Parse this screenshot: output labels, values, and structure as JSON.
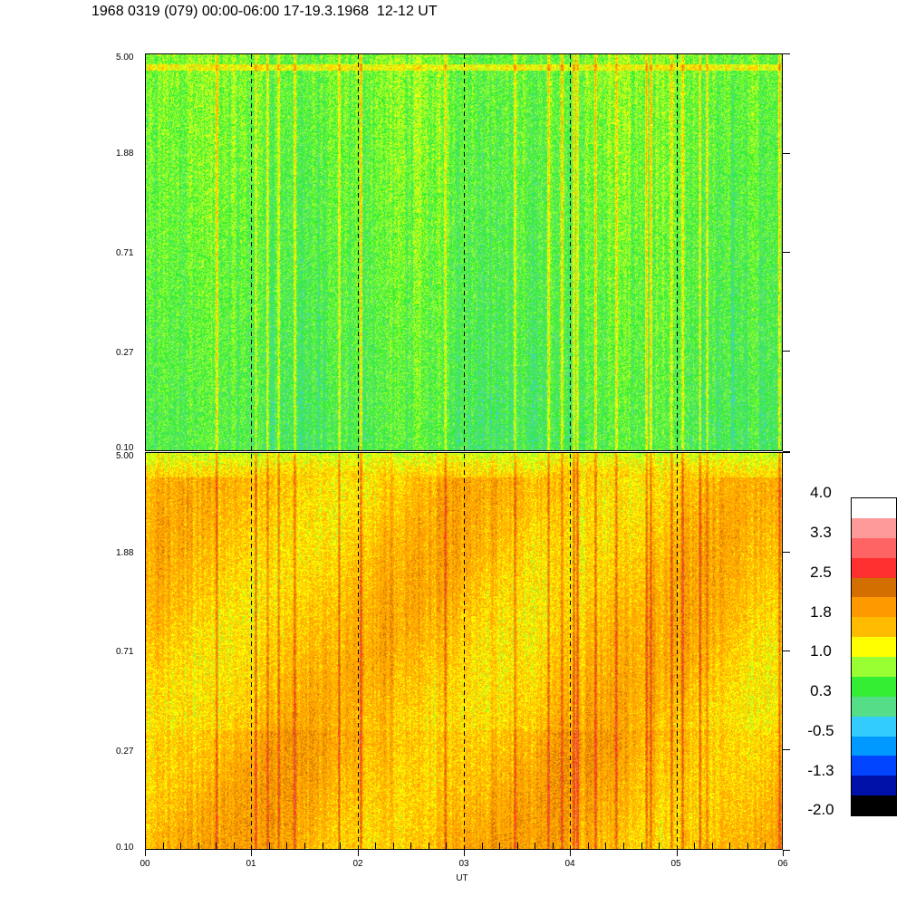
{
  "title": "1968 0319 (079) 00:00-06:00 17-19.3.1968  12-12 UT",
  "chart_data": [
    {
      "type": "heatmap",
      "panel": "top",
      "y_scale": "log",
      "ylim": [
        0.1,
        5.0
      ],
      "y_ticks": [
        "5.00",
        "1.88",
        "0.71",
        "0.27",
        "0.10"
      ],
      "xlim": [
        0,
        6
      ],
      "dominant_levels": "green-cyan (approx 0.0 to 0.7)"
    },
    {
      "type": "heatmap",
      "panel": "bottom",
      "y_scale": "log",
      "ylim": [
        0.1,
        5.0
      ],
      "y_ticks": [
        "5.00",
        "1.88",
        "0.71",
        "0.27",
        "0.10"
      ],
      "xlim": [
        0,
        6
      ],
      "xlabel": "UT",
      "x_ticks": [
        "00",
        "01",
        "02",
        "03",
        "04",
        "05",
        "06"
      ],
      "dominant_levels": "yellow-orange (approx 1.0 to 2.2)"
    }
  ],
  "colorbar": {
    "labels": [
      "4.0",
      "3.3",
      "2.5",
      "1.8",
      "1.0",
      "0.3",
      "-0.5",
      "-1.3",
      "-2.0"
    ],
    "colors": [
      "#ffffff",
      "#ff9a9a",
      "#ff6464",
      "#ff3030",
      "#d26f00",
      "#ff9900",
      "#ffbb00",
      "#ffff00",
      "#99ff33",
      "#33ee33",
      "#55dd88",
      "#33ccff",
      "#0099ff",
      "#0044ff",
      "#0011aa",
      "#000000"
    ]
  },
  "dashed_hour_lines": [
    1,
    2,
    3,
    4,
    5
  ]
}
